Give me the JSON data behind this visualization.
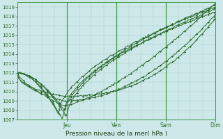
{
  "title": "",
  "xlabel": "Pression niveau de la mer( hPa )",
  "ylabel": "",
  "bg_color": "#cce8e8",
  "grid_color": "#aacccc",
  "line_color": "#2d6a2d",
  "marker_color": "#2d6a2d",
  "ylim": [
    1007,
    1019.5
  ],
  "ytick_min": 1007,
  "ytick_max": 1019,
  "xlabel_color": "#2d6a2d",
  "day_labels": [
    "Jeu",
    "Ven",
    "Sam",
    "Dim"
  ],
  "hours_total": 96,
  "num_series": 7
}
